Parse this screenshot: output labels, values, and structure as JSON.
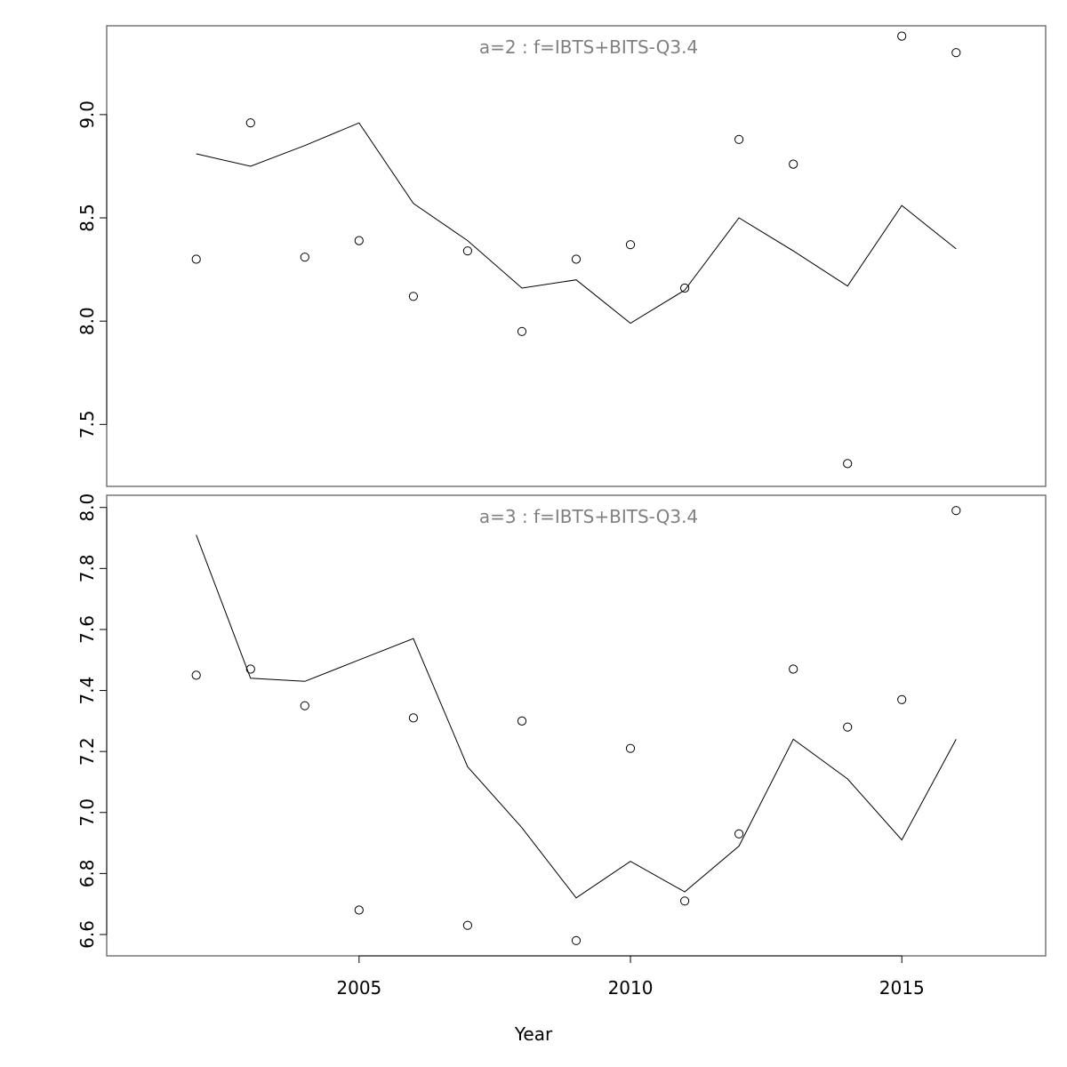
{
  "figure": {
    "xlabel": "Year"
  },
  "chart_data": [
    {
      "type": "line",
      "title": "a=2  :  f=IBTS+BITS-Q3.4",
      "xlabel": "Year",
      "ylabel": "",
      "xlim": [
        2000.35,
        2017.65
      ],
      "ylim": [
        7.2,
        9.43
      ],
      "yticks": [
        7.5,
        8.0,
        8.5,
        9.0
      ],
      "xticks": [],
      "grid": false,
      "series": [
        {
          "style": "points",
          "x": [
            2002,
            2003,
            2004,
            2005,
            2006,
            2007,
            2008,
            2009,
            2010,
            2011,
            2012,
            2013,
            2014,
            2015,
            2016
          ],
          "y": [
            8.3,
            8.96,
            8.31,
            8.39,
            8.12,
            8.34,
            7.95,
            8.3,
            8.37,
            8.16,
            8.88,
            8.76,
            7.31,
            9.38,
            9.3
          ]
        },
        {
          "style": "line",
          "x": [
            2002,
            2003,
            2004,
            2005,
            2006,
            2007,
            2008,
            2009,
            2010,
            2011,
            2012,
            2013,
            2014,
            2015,
            2016
          ],
          "y": [
            8.81,
            8.75,
            8.85,
            8.96,
            8.57,
            8.39,
            8.16,
            8.2,
            7.99,
            8.15,
            8.5,
            8.34,
            8.17,
            8.56,
            8.35
          ]
        }
      ]
    },
    {
      "type": "line",
      "title": "a=3  :  f=IBTS+BITS-Q3.4",
      "xlabel": "Year",
      "ylabel": "",
      "xlim": [
        2000.35,
        2017.65
      ],
      "ylim": [
        6.53,
        8.04
      ],
      "yticks": [
        6.6,
        6.8,
        7.0,
        7.2,
        7.4,
        7.6,
        7.8,
        8.0
      ],
      "xticks": [
        2005,
        2010,
        2015
      ],
      "grid": false,
      "series": [
        {
          "style": "points",
          "x": [
            2002,
            2003,
            2004,
            2005,
            2006,
            2007,
            2008,
            2009,
            2010,
            2011,
            2012,
            2013,
            2014,
            2015,
            2016
          ],
          "y": [
            7.45,
            7.47,
            7.35,
            6.68,
            7.31,
            6.63,
            7.3,
            6.58,
            7.21,
            6.71,
            6.93,
            7.47,
            7.28,
            7.37,
            7.99
          ]
        },
        {
          "style": "line",
          "x": [
            2002,
            2003,
            2004,
            2005,
            2006,
            2007,
            2008,
            2009,
            2010,
            2011,
            2012,
            2013,
            2014,
            2015,
            2016
          ],
          "y": [
            7.91,
            7.44,
            7.43,
            7.5,
            7.57,
            7.15,
            6.95,
            6.72,
            6.84,
            6.74,
            6.89,
            7.24,
            7.11,
            6.91,
            7.24
          ]
        }
      ]
    }
  ]
}
